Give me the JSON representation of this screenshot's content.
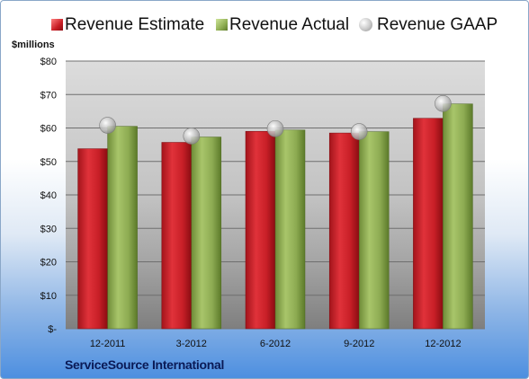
{
  "colors": {
    "estimate": "#c8202a",
    "actual": "#8aab4e",
    "gaap": "#c0c0c0"
  },
  "units_label": "$millions",
  "company": "ServiceSource International",
  "chart_data": {
    "type": "bar",
    "categories": [
      "12-2011",
      "3-2012",
      "6-2012",
      "9-2012",
      "12-2012"
    ],
    "series": [
      {
        "name": "Revenue Estimate",
        "kind": "bar",
        "values": [
          53.8,
          55.7,
          59.0,
          58.5,
          62.9
        ]
      },
      {
        "name": "Revenue Actual",
        "kind": "bar",
        "values": [
          60.5,
          57.3,
          59.4,
          58.9,
          67.2
        ]
      },
      {
        "name": "Revenue GAAP",
        "kind": "marker",
        "values": [
          60.8,
          57.6,
          59.8,
          58.9,
          67.3
        ]
      }
    ],
    "ylim": [
      0,
      80
    ],
    "yticks": [
      0,
      10,
      20,
      30,
      40,
      50,
      60,
      70,
      80
    ],
    "ytick_labels": [
      "$-",
      "$10",
      "$20",
      "$30",
      "$40",
      "$50",
      "$60",
      "$70",
      "$80"
    ],
    "grid": true,
    "legend_position": "top"
  }
}
